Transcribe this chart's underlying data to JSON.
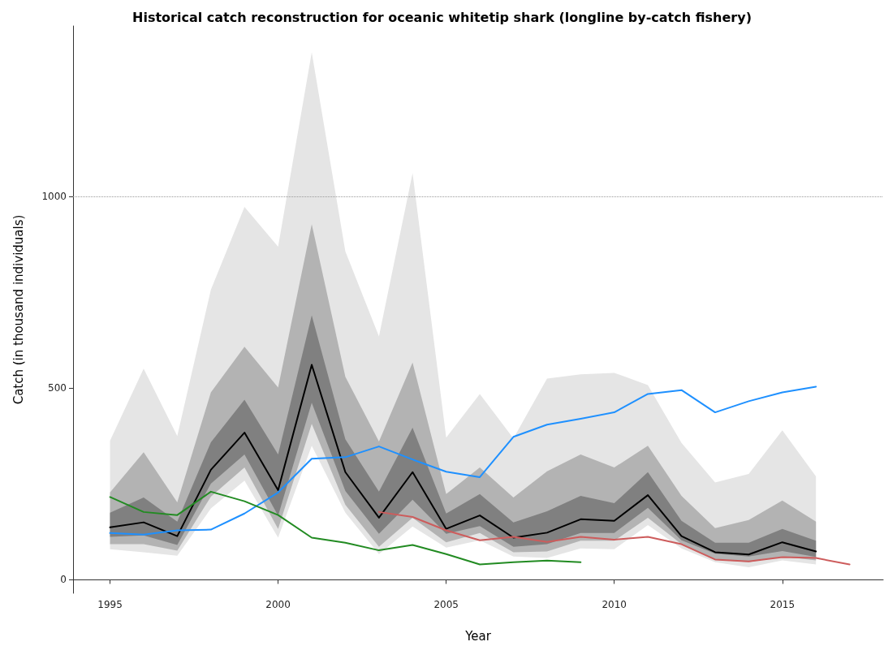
{
  "chart_data": {
    "type": "line",
    "title": "Historical catch reconstruction for oceanic whitetip shark (longline by-catch fishery)",
    "xlabel": "Year",
    "ylabel": "Catch (in thousand individuals)",
    "x": [
      1995,
      1996,
      1997,
      1998,
      1999,
      2000,
      2001,
      2002,
      2003,
      2004,
      2005,
      2006,
      2007,
      2008,
      2009,
      2010,
      2011,
      2012,
      2013,
      2014,
      2015,
      2016
    ],
    "series": [
      {
        "color": "#e5e5e5",
        "values": [
          null,
          null,
          null,
          null,
          null,
          null,
          null,
          null,
          null,
          null,
          null,
          null,
          null,
          null,
          null,
          null,
          null,
          null,
          null,
          null,
          null,
          null
        ],
        "lower": [
          80,
          72,
          63,
          186,
          259,
          110,
          350,
          175,
          67,
          139,
          84,
          103,
          61,
          57,
          82,
          80,
          143,
          82,
          46,
          33,
          51,
          40
        ],
        "upper": [
          363,
          551,
          375,
          757,
          973,
          869,
          1376,
          857,
          635,
          1061,
          371,
          485,
          369,
          525,
          536,
          540,
          508,
          357,
          254,
          276,
          390,
          270
        ]
      },
      {
        "color": "#b3b3b3",
        "values": [
          null,
          null,
          null,
          null,
          null,
          null,
          null,
          null,
          null,
          null,
          null,
          null,
          null,
          null,
          null,
          null,
          null,
          null,
          null,
          null,
          null,
          null
        ],
        "lower": [
          93,
          93,
          76,
          217,
          293,
          133,
          407,
          196,
          86,
          162,
          98,
          122,
          72,
          74,
          102,
          102,
          162,
          93,
          53,
          46,
          61,
          51
        ],
        "upper": [
          228,
          333,
          202,
          489,
          608,
          502,
          928,
          530,
          361,
          567,
          224,
          293,
          215,
          283,
          327,
          293,
          350,
          219,
          135,
          156,
          207,
          152
        ]
      },
      {
        "color": "#808080",
        "values": [
          null,
          null,
          null,
          null,
          null,
          null,
          null,
          null,
          null,
          null,
          null,
          null,
          null,
          null,
          null,
          null,
          null,
          null,
          null,
          null,
          null,
          null
        ],
        "lower": [
          112,
          116,
          91,
          251,
          327,
          167,
          462,
          232,
          120,
          209,
          120,
          140,
          86,
          93,
          122,
          122,
          188,
          103,
          68,
          61,
          75,
          60
        ],
        "upper": [
          175,
          215,
          152,
          359,
          470,
          327,
          690,
          367,
          230,
          397,
          173,
          224,
          150,
          179,
          219,
          200,
          281,
          154,
          97,
          97,
          133,
          102
        ]
      },
      {
        "color": "#000000",
        "values": [
          137,
          150,
          114,
          287,
          384,
          234,
          561,
          281,
          162,
          281,
          133,
          168,
          110,
          123,
          158,
          154,
          221,
          114,
          72,
          66,
          98,
          74
        ]
      },
      {
        "color": "#1e90ff",
        "values": [
          122,
          118,
          129,
          131,
          173,
          228,
          316,
          320,
          348,
          314,
          282,
          268,
          373,
          405,
          420,
          437,
          485,
          495,
          437,
          466,
          489,
          504
        ]
      },
      {
        "color": "#228b22",
        "x": [
          1995,
          1996,
          1997,
          1998,
          1999,
          2000,
          2001,
          2002,
          2003,
          2004,
          2005,
          2006,
          2007,
          2008,
          2009
        ],
        "values": [
          216,
          177,
          169,
          230,
          205,
          169,
          110,
          97,
          77,
          91,
          67,
          40,
          46,
          50,
          46
        ]
      },
      {
        "color": "#cd5c5c",
        "x": [
          2003,
          2004,
          2005,
          2006,
          2007,
          2008,
          2009,
          2010,
          2011,
          2012,
          2013,
          2014,
          2015,
          2016,
          2017
        ],
        "values": [
          177,
          164,
          129,
          103,
          112,
          99,
          112,
          105,
          112,
          93,
          53,
          48,
          59,
          57,
          40
        ]
      }
    ],
    "xlim": [
      1993.9,
      2018
    ],
    "xticks": [
      1995,
      2000,
      2005,
      2010,
      2015
    ],
    "ylim": [
      -35,
      1445
    ],
    "yticks": [
      0,
      500,
      1000
    ],
    "ref_lines": [
      {
        "axis": "y",
        "value": 1000,
        "color": "#999999",
        "line_style": "dotted"
      }
    ],
    "grid": false,
    "marker": "none",
    "line_style": "solid"
  }
}
